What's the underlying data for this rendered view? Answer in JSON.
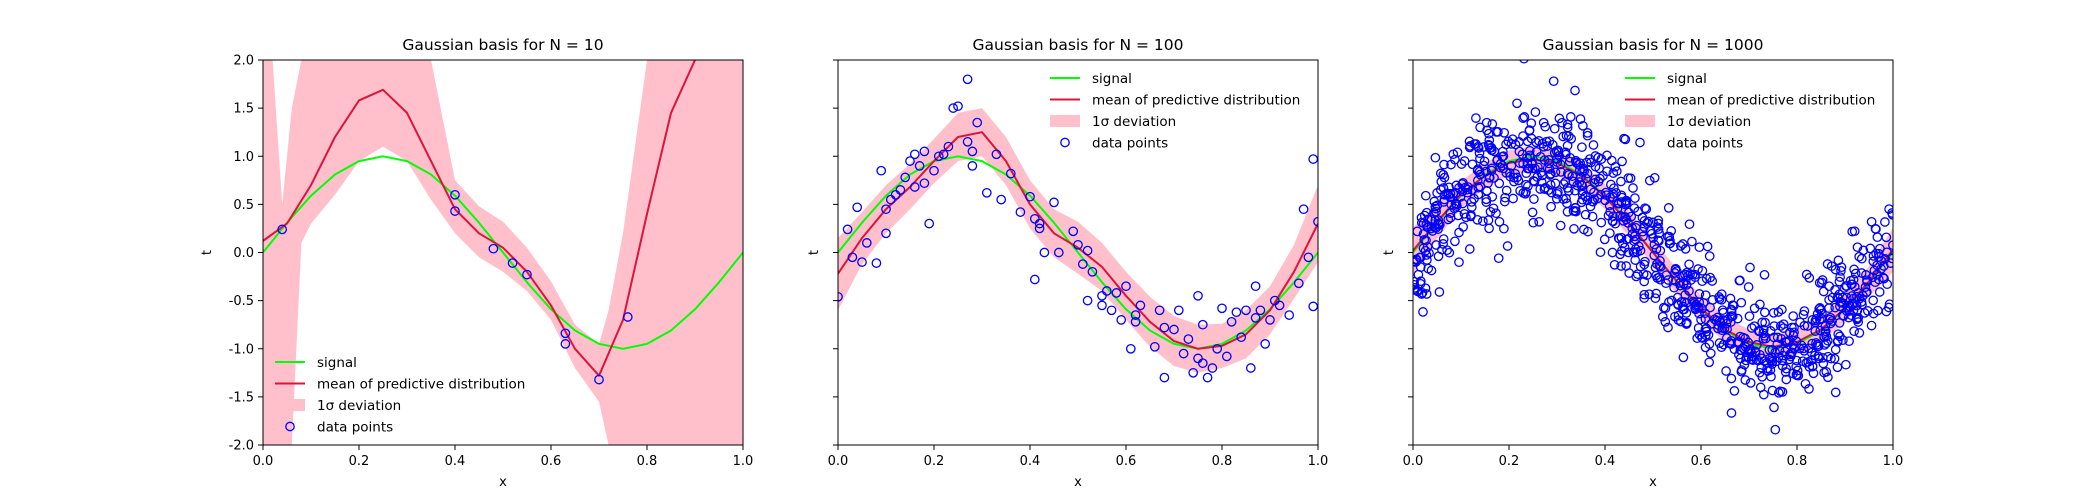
{
  "colors": {
    "signal": "#00ff00",
    "mean": "#dc143c",
    "band": "#ffc0cb",
    "points": "#0000ff",
    "axis": "#000000"
  },
  "chart_data": [
    {
      "type": "line",
      "title": "Gaussian basis for N = 10",
      "xlabel": "x",
      "ylabel": "t",
      "xlim": [
        0,
        1
      ],
      "ylim": [
        -2,
        2
      ],
      "xticks": [
        "0.0",
        "0.2",
        "0.4",
        "0.6",
        "0.8",
        "1.0"
      ],
      "yticks": [
        "-2.0",
        "-1.5",
        "-1.0",
        "-0.5",
        "0.0",
        "0.5",
        "1.0",
        "1.5",
        "2.0"
      ],
      "show_yticklabels": true,
      "grid": false,
      "legend": {
        "placement": "lower-left",
        "entries": [
          "signal",
          "mean of predictive distribution",
          "1σ deviation",
          "data points"
        ]
      },
      "series": [
        {
          "name": "signal",
          "x": [
            0.0,
            0.05,
            0.1,
            0.15,
            0.2,
            0.25,
            0.3,
            0.35,
            0.4,
            0.45,
            0.5,
            0.55,
            0.6,
            0.65,
            0.7,
            0.75,
            0.8,
            0.85,
            0.9,
            0.95,
            1.0
          ],
          "y": [
            0.0,
            0.31,
            0.59,
            0.81,
            0.95,
            1.0,
            0.95,
            0.81,
            0.59,
            0.31,
            0.0,
            -0.31,
            -0.59,
            -0.81,
            -0.95,
            -1.0,
            -0.95,
            -0.81,
            -0.59,
            -0.31,
            0.0
          ]
        },
        {
          "name": "mean of predictive distribution",
          "x": [
            0.0,
            0.05,
            0.1,
            0.15,
            0.2,
            0.25,
            0.3,
            0.35,
            0.4,
            0.45,
            0.5,
            0.55,
            0.6,
            0.65,
            0.7,
            0.75,
            0.8,
            0.85,
            0.9
          ],
          "y": [
            0.12,
            0.3,
            0.7,
            1.2,
            1.58,
            1.69,
            1.45,
            0.95,
            0.45,
            0.2,
            0.05,
            -0.2,
            -0.55,
            -1.0,
            -1.28,
            -0.7,
            0.4,
            1.45,
            2.0
          ]
        },
        {
          "name": "1σ deviation",
          "x": [
            0.0,
            0.02,
            0.04,
            0.06,
            0.08,
            0.1,
            0.15,
            0.2,
            0.25,
            0.3,
            0.35,
            0.4,
            0.45,
            0.5,
            0.55,
            0.6,
            0.65,
            0.7,
            0.72,
            0.75,
            0.8,
            0.85,
            0.9,
            1.0
          ],
          "lower": [
            -2,
            -2,
            -2,
            -2,
            0.1,
            0.3,
            0.6,
            0.95,
            1.1,
            0.95,
            0.55,
            0.2,
            -0.05,
            -0.2,
            -0.4,
            -0.7,
            -1.2,
            -1.55,
            -2,
            -2,
            -2,
            -2,
            -2,
            -2
          ],
          "upper": [
            2,
            2,
            0.5,
            1.5,
            2,
            2,
            2,
            2,
            2,
            2,
            2,
            0.75,
            0.48,
            0.32,
            0.05,
            -0.3,
            -0.75,
            -0.95,
            -0.6,
            0.2,
            2,
            2,
            2,
            2
          ]
        },
        {
          "name": "data points",
          "x": [
            0.04,
            0.4,
            0.4,
            0.48,
            0.52,
            0.55,
            0.63,
            0.63,
            0.7,
            0.76
          ],
          "y": [
            0.24,
            0.6,
            0.43,
            0.04,
            -0.11,
            -0.23,
            -0.84,
            -0.95,
            -1.32,
            -0.67
          ]
        }
      ]
    },
    {
      "type": "line",
      "title": "Gaussian basis for N = 100",
      "xlabel": "x",
      "ylabel": "t",
      "xlim": [
        0,
        1
      ],
      "ylim": [
        -2,
        2
      ],
      "xticks": [
        "0.0",
        "0.2",
        "0.4",
        "0.6",
        "0.8",
        "1.0"
      ],
      "yticks": [
        "-2.0",
        "-1.5",
        "-1.0",
        "-0.5",
        "0.0",
        "0.5",
        "1.0",
        "1.5",
        "2.0"
      ],
      "show_yticklabels": false,
      "grid": false,
      "legend": {
        "placement": "top-right",
        "entries": [
          "signal",
          "mean of predictive distribution",
          "1σ deviation",
          "data points"
        ]
      },
      "series": [
        {
          "name": "signal",
          "x": [
            0.0,
            0.05,
            0.1,
            0.15,
            0.2,
            0.25,
            0.3,
            0.35,
            0.4,
            0.45,
            0.5,
            0.55,
            0.6,
            0.65,
            0.7,
            0.75,
            0.8,
            0.85,
            0.9,
            0.95,
            1.0
          ],
          "y": [
            0.0,
            0.31,
            0.59,
            0.81,
            0.95,
            1.0,
            0.95,
            0.81,
            0.59,
            0.31,
            0.0,
            -0.31,
            -0.59,
            -0.81,
            -0.95,
            -1.0,
            -0.95,
            -0.81,
            -0.59,
            -0.31,
            0.0
          ]
        },
        {
          "name": "mean of predictive distribution",
          "x": [
            0.0,
            0.05,
            0.1,
            0.15,
            0.2,
            0.25,
            0.3,
            0.35,
            0.4,
            0.45,
            0.5,
            0.55,
            0.6,
            0.65,
            0.7,
            0.75,
            0.8,
            0.85,
            0.9,
            0.95,
            1.0
          ],
          "y": [
            -0.22,
            0.15,
            0.45,
            0.68,
            0.95,
            1.2,
            1.25,
            0.95,
            0.5,
            0.2,
            0.05,
            -0.15,
            -0.45,
            -0.72,
            -0.92,
            -1.0,
            -0.97,
            -0.85,
            -0.6,
            -0.2,
            0.3
          ]
        },
        {
          "name": "1σ deviation",
          "x": [
            0.0,
            0.05,
            0.1,
            0.15,
            0.2,
            0.25,
            0.3,
            0.35,
            0.4,
            0.45,
            0.5,
            0.55,
            0.6,
            0.65,
            0.7,
            0.75,
            0.8,
            0.85,
            0.9,
            0.95,
            1.0
          ],
          "lower": [
            -0.6,
            -0.12,
            0.2,
            0.45,
            0.72,
            0.95,
            1.0,
            0.7,
            0.25,
            -0.05,
            -0.22,
            -0.4,
            -0.7,
            -0.98,
            -1.18,
            -1.25,
            -1.2,
            -1.1,
            -0.85,
            -0.48,
            -0.1
          ],
          "upper": [
            0.15,
            0.42,
            0.7,
            0.92,
            1.18,
            1.45,
            1.5,
            1.2,
            0.75,
            0.45,
            0.32,
            0.1,
            -0.2,
            -0.46,
            -0.66,
            -0.75,
            -0.74,
            -0.6,
            -0.35,
            0.08,
            0.7
          ]
        },
        {
          "name": "data points",
          "x": [
            0.0,
            0.02,
            0.03,
            0.04,
            0.05,
            0.06,
            0.08,
            0.09,
            0.1,
            0.1,
            0.11,
            0.12,
            0.13,
            0.14,
            0.15,
            0.16,
            0.16,
            0.17,
            0.18,
            0.18,
            0.19,
            0.2,
            0.21,
            0.22,
            0.23,
            0.24,
            0.25,
            0.27,
            0.27,
            0.28,
            0.28,
            0.29,
            0.31,
            0.33,
            0.34,
            0.36,
            0.38,
            0.4,
            0.41,
            0.41,
            0.42,
            0.42,
            0.43,
            0.45,
            0.46,
            0.49,
            0.5,
            0.51,
            0.52,
            0.52,
            0.53,
            0.55,
            0.55,
            0.56,
            0.57,
            0.58,
            0.59,
            0.6,
            0.61,
            0.62,
            0.62,
            0.63,
            0.66,
            0.67,
            0.68,
            0.68,
            0.7,
            0.71,
            0.72,
            0.73,
            0.74,
            0.75,
            0.75,
            0.76,
            0.76,
            0.77,
            0.78,
            0.79,
            0.8,
            0.81,
            0.82,
            0.83,
            0.84,
            0.85,
            0.86,
            0.87,
            0.87,
            0.88,
            0.89,
            0.9,
            0.91,
            0.92,
            0.94,
            0.96,
            0.97,
            0.98,
            0.99,
            0.99,
            1.0
          ],
          "y": [
            -0.46,
            0.24,
            -0.05,
            0.47,
            -0.1,
            0.1,
            -0.11,
            0.85,
            0.45,
            0.2,
            0.55,
            0.6,
            0.65,
            0.78,
            0.95,
            0.68,
            1.02,
            0.9,
            0.72,
            1.05,
            0.3,
            0.85,
            1.0,
            1.02,
            1.1,
            1.5,
            1.52,
            1.8,
            1.15,
            0.9,
            1.05,
            1.35,
            0.62,
            1.02,
            0.55,
            0.82,
            0.42,
            0.58,
            0.35,
            -0.28,
            0.3,
            0.25,
            0.0,
            0.52,
            0.0,
            0.22,
            0.08,
            -0.12,
            -0.5,
            0.02,
            -0.2,
            -0.45,
            -0.55,
            -0.4,
            -0.6,
            -0.42,
            -0.7,
            -0.35,
            -1.0,
            -0.65,
            -0.72,
            -0.55,
            -0.98,
            -0.6,
            -0.78,
            -1.3,
            -0.8,
            -0.6,
            -1.05,
            -0.9,
            -1.25,
            -1.1,
            -0.45,
            -0.75,
            -1.15,
            -1.3,
            -1.2,
            -1.0,
            -0.58,
            -1.08,
            -0.72,
            -0.62,
            -0.88,
            -0.6,
            -1.2,
            -0.35,
            -0.68,
            -0.6,
            -0.95,
            -0.7,
            -0.5,
            -0.55,
            -0.65,
            -0.32,
            0.45,
            -0.05,
            0.97,
            -0.56,
            0.32
          ]
        }
      ]
    },
    {
      "type": "line",
      "title": "Gaussian basis for N = 1000",
      "xlabel": "x",
      "ylabel": "t",
      "xlim": [
        0,
        1
      ],
      "ylim": [
        -2,
        2
      ],
      "xticks": [
        "0.0",
        "0.2",
        "0.4",
        "0.6",
        "0.8",
        "1.0"
      ],
      "yticks": [
        "-2.0",
        "-1.5",
        "-1.0",
        "-0.5",
        "0.0",
        "0.5",
        "1.0",
        "1.5",
        "2.0"
      ],
      "show_yticklabels": false,
      "grid": false,
      "legend": {
        "placement": "top-right",
        "entries": [
          "signal",
          "mean of predictive distribution",
          "1σ deviation",
          "data points"
        ]
      },
      "series": [
        {
          "name": "signal",
          "x": [
            0.0,
            0.05,
            0.1,
            0.15,
            0.2,
            0.25,
            0.3,
            0.35,
            0.4,
            0.45,
            0.5,
            0.55,
            0.6,
            0.65,
            0.7,
            0.75,
            0.8,
            0.85,
            0.9,
            0.95,
            1.0
          ],
          "y": [
            0.0,
            0.31,
            0.59,
            0.81,
            0.95,
            1.0,
            0.95,
            0.81,
            0.59,
            0.31,
            0.0,
            -0.31,
            -0.59,
            -0.81,
            -0.95,
            -1.0,
            -0.95,
            -0.81,
            -0.59,
            -0.31,
            0.0
          ]
        },
        {
          "name": "mean of predictive distribution",
          "x": [
            0.0,
            0.05,
            0.1,
            0.15,
            0.2,
            0.25,
            0.3,
            0.35,
            0.4,
            0.45,
            0.5,
            0.55,
            0.6,
            0.65,
            0.7,
            0.75,
            0.8,
            0.85,
            0.9,
            0.95,
            1.0
          ],
          "y": [
            0.02,
            0.32,
            0.6,
            0.8,
            0.93,
            0.97,
            0.93,
            0.8,
            0.58,
            0.3,
            0.0,
            -0.3,
            -0.58,
            -0.8,
            -0.93,
            -0.98,
            -0.93,
            -0.8,
            -0.58,
            -0.3,
            0.03
          ]
        },
        {
          "name": "1σ deviation",
          "x": [
            0.0,
            0.05,
            0.1,
            0.15,
            0.2,
            0.25,
            0.3,
            0.35,
            0.4,
            0.45,
            0.5,
            0.55,
            0.6,
            0.65,
            0.7,
            0.75,
            0.8,
            0.85,
            0.9,
            0.95,
            1.0
          ],
          "lower": [
            -0.22,
            0.14,
            0.46,
            0.67,
            0.8,
            0.84,
            0.8,
            0.67,
            0.45,
            0.17,
            -0.13,
            -0.43,
            -0.71,
            -0.93,
            -1.06,
            -1.11,
            -1.06,
            -0.93,
            -0.72,
            -0.46,
            -0.2
          ],
          "upper": [
            0.26,
            0.5,
            0.74,
            0.93,
            1.06,
            1.1,
            1.06,
            0.93,
            0.71,
            0.43,
            0.13,
            -0.17,
            -0.45,
            -0.67,
            -0.8,
            -0.85,
            -0.8,
            -0.67,
            -0.44,
            -0.14,
            0.26
          ]
        },
        {
          "name": "data points",
          "generated": true,
          "count": 1000,
          "function": "sin(2*pi*x)",
          "noise_sd": 0.3
        }
      ]
    }
  ]
}
